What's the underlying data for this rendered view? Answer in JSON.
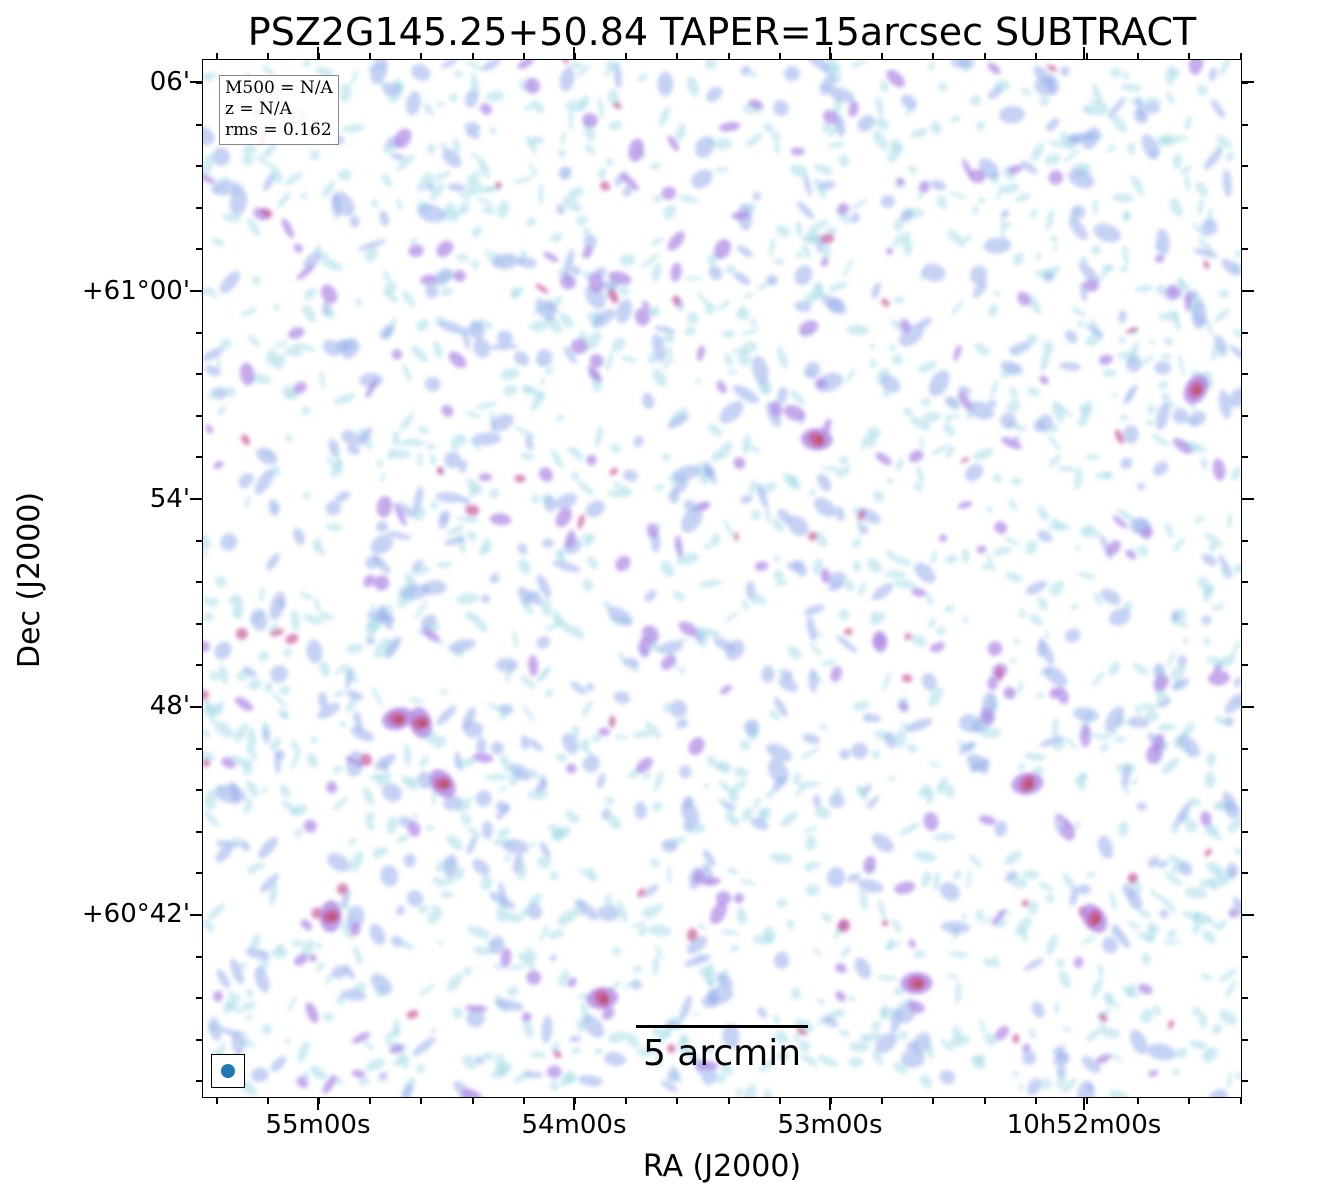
{
  "title": "PSZ2G145.25+50.84 TAPER=15arcsec SUBTRACT",
  "info_box": {
    "mass": "M500 = N/A",
    "redshift": "z = N/A",
    "rms": "rms = 0.162"
  },
  "scalebar_label": "5 arcmin",
  "axes": {
    "xlabel": "RA (J2000)",
    "ylabel": "Dec (J2000)",
    "x_ticks": [
      "55m00s",
      "54m00s",
      "53m00s",
      "10h52m00s"
    ],
    "y_ticks": [
      "06'",
      "+61°00'",
      "54'",
      "48'",
      "+60°42'"
    ]
  },
  "colormap": [
    "#a8dce8",
    "#9fb4ec",
    "#b28ee6",
    "#c95a9a",
    "#b04a38"
  ]
}
